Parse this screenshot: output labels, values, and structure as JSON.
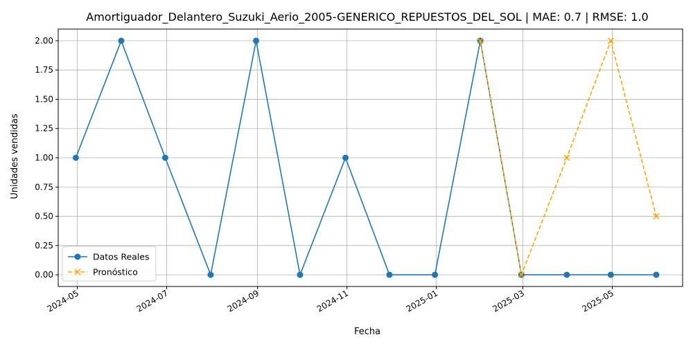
{
  "chart_data": {
    "type": "line",
    "title": "Amortiguador_Delantero_Suzuki_Aerio_2005-GENERICO_REPUESTOS_DEL_SOL | MAE: 0.7 | RMSE: 1.0",
    "xlabel": "Fecha",
    "ylabel": "Unidades vendidas",
    "ylim": [
      -0.1,
      2.1
    ],
    "xlim": [
      "2024-04-18",
      "2025-06-18"
    ],
    "yticks": [
      0.0,
      0.25,
      0.5,
      0.75,
      1.0,
      1.25,
      1.5,
      1.75,
      2.0
    ],
    "ytick_labels": [
      "0.00",
      "0.25",
      "0.50",
      "0.75",
      "1.00",
      "1.25",
      "1.50",
      "1.75",
      "2.00"
    ],
    "xticks": [
      "2024-05-01",
      "2024-07-01",
      "2024-09-01",
      "2024-11-01",
      "2025-01-01",
      "2025-03-01",
      "2025-05-01"
    ],
    "xtick_labels": [
      "2024-05",
      "2024-07",
      "2024-09",
      "2024-11",
      "2025-01",
      "2025-03",
      "2025-05"
    ],
    "grid": true,
    "legend_position": "lower-left",
    "series": [
      {
        "name": "Datos Reales",
        "color": "#1f77b4",
        "style": "solid",
        "marker": "circle",
        "x": [
          "2024-04-30",
          "2024-05-31",
          "2024-06-30",
          "2024-07-31",
          "2024-08-31",
          "2024-09-30",
          "2024-10-31",
          "2024-11-30",
          "2024-12-31",
          "2025-01-31",
          "2025-02-28",
          "2025-03-31",
          "2025-04-30",
          "2025-05-31"
        ],
        "values": [
          1,
          2,
          1,
          0,
          2,
          0,
          1,
          0,
          0,
          2,
          0,
          0,
          0,
          0
        ]
      },
      {
        "name": "Pronóstico",
        "color": "#ffa500",
        "style": "dashed",
        "marker": "x",
        "x": [
          "2025-01-31",
          "2025-02-28",
          "2025-03-31",
          "2025-04-30",
          "2025-05-31"
        ],
        "values": [
          2.0,
          0.0,
          1.0,
          2.0,
          0.5
        ]
      }
    ]
  }
}
